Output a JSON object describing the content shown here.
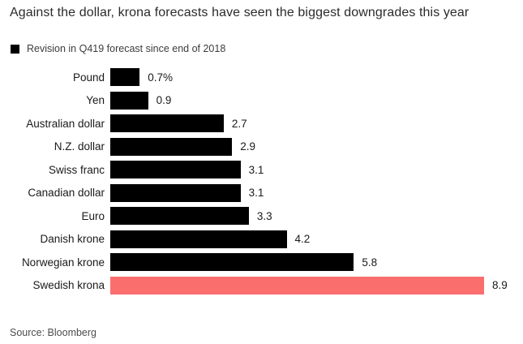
{
  "chart_data": {
    "type": "bar",
    "orientation": "horizontal",
    "title": "Against the dollar, krona forecasts have seen the biggest downgrades this year",
    "legend": "Revision in Q419 forecast since end of 2018",
    "legend_position": "top-left",
    "categories": [
      "Pound",
      "Yen",
      "Australian dollar",
      "N.Z. dollar",
      "Swiss franc",
      "Canadian dollar",
      "Euro",
      "Danish krone",
      "Norwegian krone",
      "Swedish krona"
    ],
    "values": [
      0.7,
      0.9,
      2.7,
      2.9,
      3.1,
      3.1,
      3.3,
      4.2,
      5.8,
      8.9
    ],
    "value_labels": [
      "0.7%",
      "0.9",
      "2.7",
      "2.9",
      "3.1",
      "3.1",
      "3.3",
      "4.2",
      "5.8",
      "8.9"
    ],
    "xlim": [
      0,
      8.9
    ],
    "grid": false,
    "axis_ticks_visible": false,
    "highlight_index": 9,
    "colors": {
      "bar_default": "#000000",
      "bar_highlight": "#fa6e6e"
    },
    "source": "Source: Bloomberg"
  }
}
